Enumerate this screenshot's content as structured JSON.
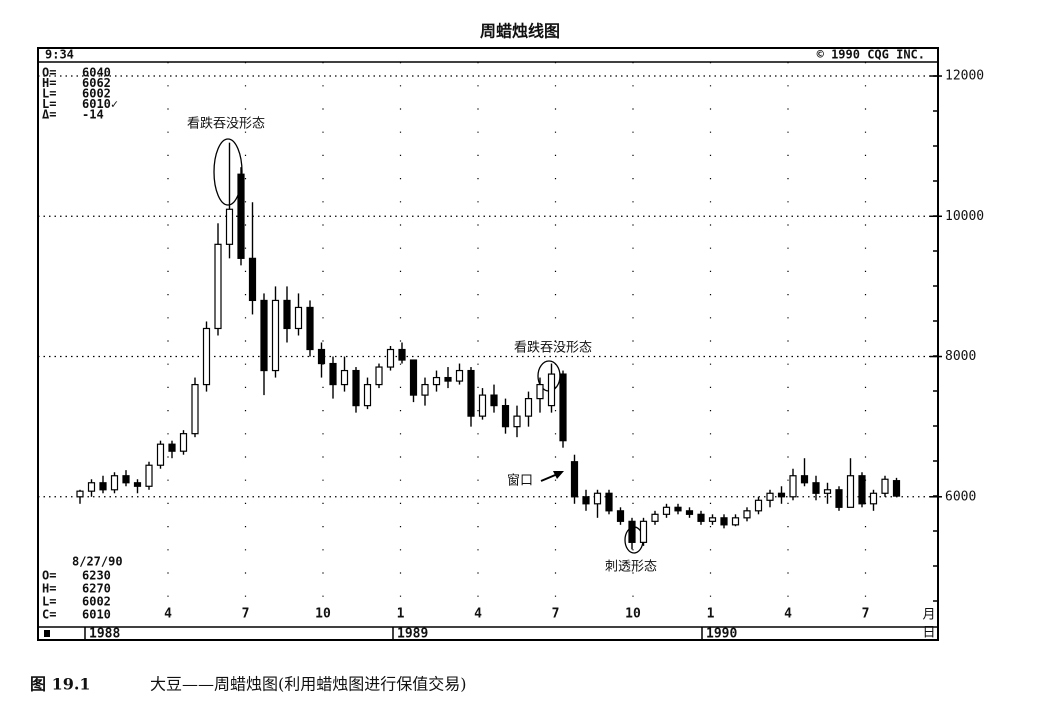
{
  "chart_data": {
    "type": "candlestick",
    "title": "周蜡烛线图",
    "header_left": "9:34",
    "header_right": "© 1990 CQG INC.",
    "quote_panel": {
      "labels": [
        "O=",
        "H=",
        "L=",
        "L=",
        "Δ="
      ],
      "values": [
        "6040",
        "6062",
        "6002",
        "6010✓",
        "-14"
      ]
    },
    "last_panel": {
      "date": "8/27/90",
      "labels": [
        "O=",
        "H=",
        "L=",
        "C="
      ],
      "values": [
        "6230",
        "6270",
        "6002",
        "6010"
      ]
    },
    "x_month_labels": [
      "4",
      "7",
      "10",
      "1",
      "4",
      "7",
      "10",
      "1",
      "4",
      "7"
    ],
    "x_year_labels": [
      "1988",
      "1989",
      "1990"
    ],
    "x_unit_top": "月",
    "x_unit_bottom": "日",
    "annotations": [
      "看跌吞没形态",
      "看跌吞没形态",
      "窗口",
      "刺透形态"
    ],
    "ylim": [
      4300,
      12200
    ],
    "yticks": [
      6000,
      8000,
      10000,
      12000
    ],
    "grid": true,
    "up_color": "#ffffff",
    "down_color": "#000000",
    "open": [
      6000,
      6080,
      6200,
      6100,
      6300,
      6200,
      6150,
      6450,
      6750,
      6650,
      6900,
      7600,
      8400,
      9600,
      10600,
      9400,
      8800,
      7800,
      8800,
      8400,
      8700,
      8100,
      7900,
      7600,
      7800,
      7300,
      7600,
      7850,
      8100,
      7950,
      7450,
      7600,
      7700,
      7650,
      7800,
      7150,
      7450,
      7300,
      7000,
      7150,
      7400,
      7300,
      7750,
      6500,
      6000,
      5900,
      6050,
      5800,
      5650,
      5350,
      5650,
      5750,
      5850,
      5800,
      5750,
      5650,
      5700,
      5600,
      5700,
      5800,
      5950,
      6050,
      6000,
      6300,
      6200,
      6050,
      6100,
      5850,
      6300,
      5900,
      6050,
      6230
    ],
    "high": [
      6100,
      6250,
      6300,
      6350,
      6380,
      6250,
      6500,
      6800,
      6800,
      6950,
      7700,
      8500,
      9900,
      11050,
      10700,
      10200,
      8900,
      9000,
      9000,
      8900,
      8800,
      8200,
      8000,
      8000,
      7850,
      7700,
      7900,
      8150,
      8200,
      7950,
      7700,
      7800,
      7850,
      7900,
      7850,
      7550,
      7600,
      7400,
      7300,
      7500,
      7700,
      7900,
      7800,
      6600,
      6100,
      6100,
      6100,
      5850,
      5700,
      5700,
      5800,
      5900,
      5900,
      5850,
      5800,
      5750,
      5750,
      5750,
      5850,
      6000,
      6100,
      6150,
      6400,
      6550,
      6300,
      6200,
      6150,
      6550,
      6350,
      6100,
      6300,
      6270
    ],
    "low": [
      5900,
      6000,
      6050,
      6050,
      6150,
      6050,
      6100,
      6400,
      6550,
      6600,
      6850,
      7500,
      8300,
      9400,
      9300,
      8600,
      7450,
      7700,
      8200,
      8300,
      8000,
      7700,
      7400,
      7500,
      7200,
      7250,
      7550,
      7800,
      7900,
      7350,
      7300,
      7500,
      7550,
      7600,
      7000,
      7100,
      7200,
      6900,
      6850,
      7000,
      7200,
      7200,
      6700,
      5900,
      5800,
      5700,
      5750,
      5600,
      5250,
      5300,
      5600,
      5700,
      5750,
      5700,
      5600,
      5600,
      5550,
      5580,
      5650,
      5750,
      5850,
      5900,
      5950,
      6150,
      5950,
      5900,
      5800,
      5850,
      5850,
      5800,
      6000,
      6002
    ],
    "close": [
      6080,
      6200,
      6100,
      6300,
      6200,
      6150,
      6450,
      6750,
      6650,
      6900,
      7600,
      8400,
      9600,
      10100,
      9400,
      8800,
      7800,
      8800,
      8400,
      8700,
      8100,
      7900,
      7600,
      7800,
      7300,
      7600,
      7850,
      8100,
      7950,
      7450,
      7600,
      7700,
      7650,
      7800,
      7150,
      7450,
      7300,
      7000,
      7150,
      7400,
      7600,
      7750,
      6800,
      6000,
      5900,
      6050,
      5800,
      5650,
      5350,
      5650,
      5750,
      5850,
      5800,
      5750,
      5650,
      5700,
      5600,
      5700,
      5800,
      5950,
      6050,
      6000,
      6300,
      6200,
      6050,
      6100,
      5850,
      6300,
      5900,
      6050,
      6250,
      6010
    ]
  },
  "caption": {
    "label": "图 19.1",
    "text": "大豆——周蜡烛图(利用蜡烛图进行保值交易)"
  }
}
